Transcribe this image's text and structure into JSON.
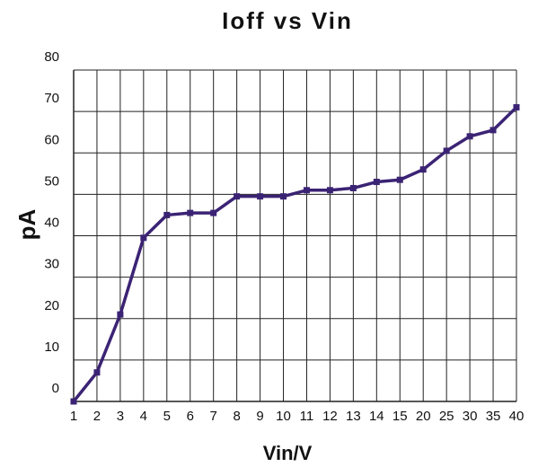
{
  "chart_data": {
    "type": "line",
    "title": "Ioff vs Vin",
    "x_label": "Vin/V",
    "y_label": "pA",
    "categories": [
      "1",
      "2",
      "3",
      "4",
      "5",
      "6",
      "7",
      "8",
      "9",
      "10",
      "11",
      "12",
      "13",
      "14",
      "15",
      "20",
      "25",
      "30",
      "35",
      "40"
    ],
    "series": [
      {
        "name": "Ioff",
        "color": "#3b2374",
        "values": [
          0,
          7,
          21,
          39.5,
          45,
          45.5,
          45.5,
          49.5,
          49.5,
          49.5,
          51,
          51,
          51.5,
          53,
          53.5,
          56,
          60.5,
          64,
          65.5,
          71
        ]
      }
    ],
    "ylim": [
      0,
      80
    ],
    "yticks": [
      0,
      10,
      20,
      30,
      40,
      50,
      60,
      70,
      80
    ],
    "grid": true
  }
}
